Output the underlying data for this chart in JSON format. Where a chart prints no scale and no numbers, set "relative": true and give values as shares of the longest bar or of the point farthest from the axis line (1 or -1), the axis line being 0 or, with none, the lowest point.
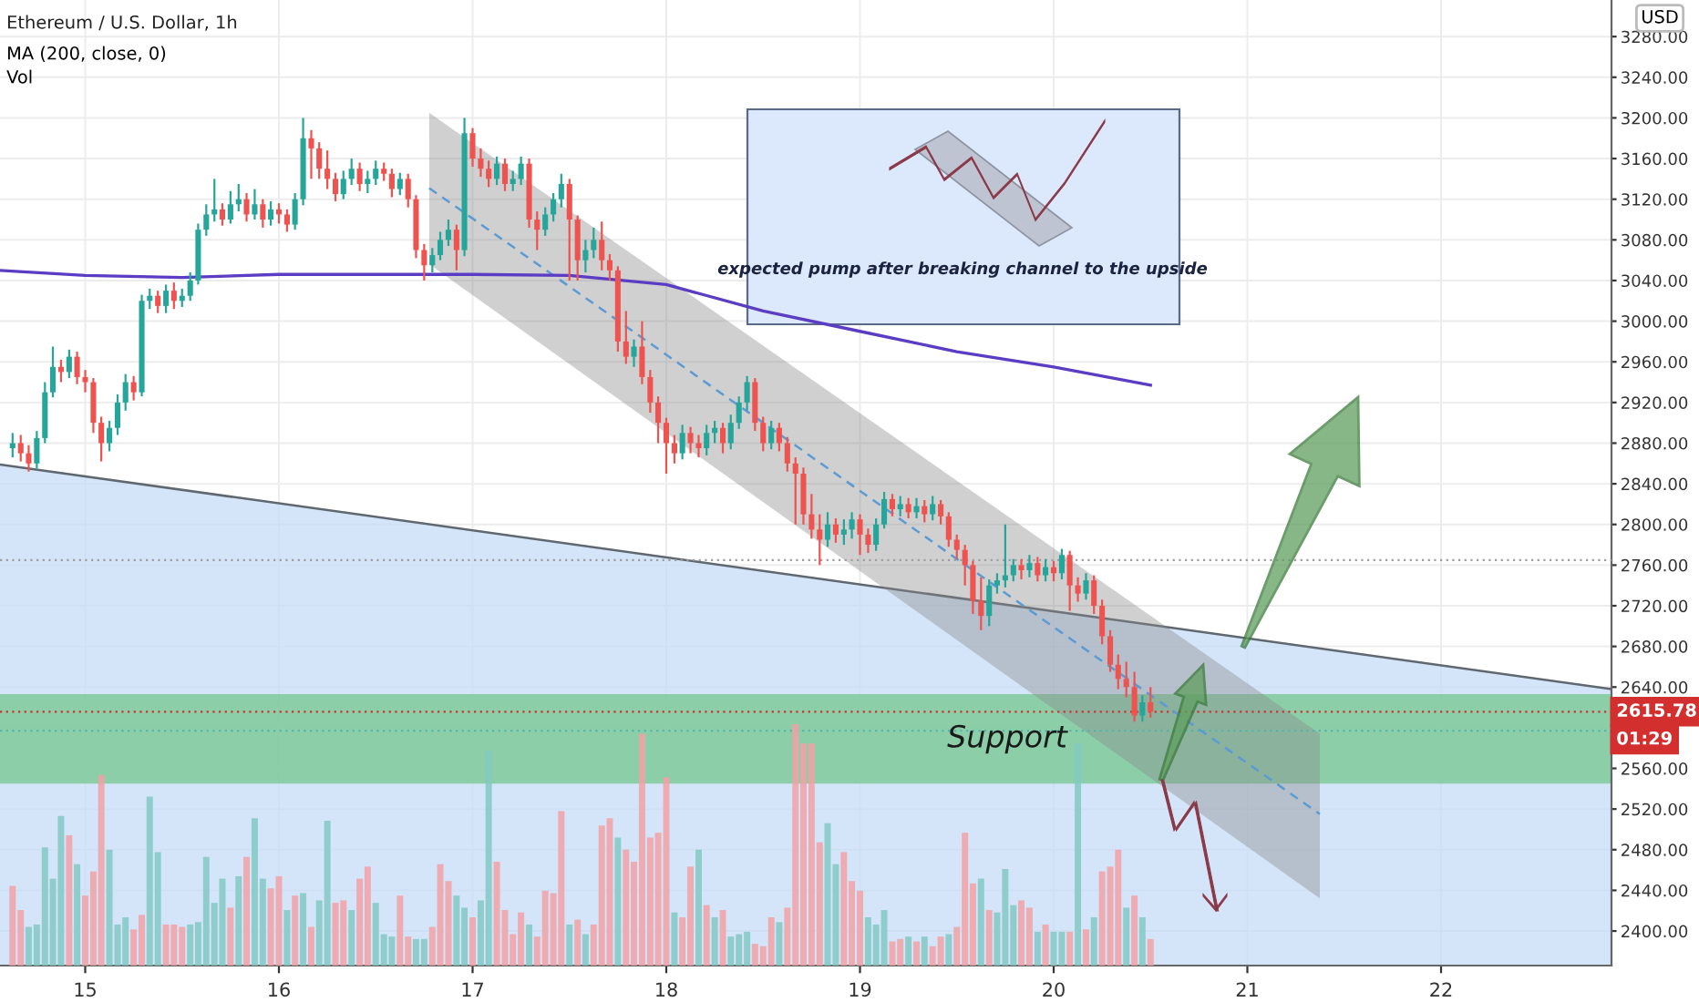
{
  "chart_data": [
    {
      "type": "candlestick",
      "title": "Ethereum / U.S. Dollar, 1h",
      "x": [
        14.625,
        14.667,
        14.708,
        14.75,
        14.792,
        14.833,
        14.875,
        14.917,
        14.958,
        15,
        15.042,
        15.083,
        15.125,
        15.167,
        15.208,
        15.25,
        15.292,
        15.333,
        15.375,
        15.417,
        15.458,
        15.5,
        15.542,
        15.583,
        15.625,
        15.667,
        15.708,
        15.75,
        15.792,
        15.833,
        15.875,
        15.917,
        15.958,
        16,
        16.042,
        16.083,
        16.125,
        16.167,
        16.208,
        16.25,
        16.292,
        16.333,
        16.375,
        16.417,
        16.458,
        16.5,
        16.542,
        16.583,
        16.625,
        16.667,
        16.708,
        16.75,
        16.792,
        16.833,
        16.875,
        16.917,
        16.958,
        17,
        17.042,
        17.083,
        17.125,
        17.167,
        17.208,
        17.25,
        17.292,
        17.333,
        17.375,
        17.417,
        17.458,
        17.5,
        17.542,
        17.583,
        17.625,
        17.667,
        17.708,
        17.75,
        17.792,
        17.833,
        17.875,
        17.917,
        17.958,
        18,
        18.042,
        18.083,
        18.125,
        18.167,
        18.208,
        18.25,
        18.292,
        18.333,
        18.375,
        18.417,
        18.458,
        18.5,
        18.542,
        18.583,
        18.625,
        18.667,
        18.708,
        18.75,
        18.792,
        18.833,
        18.875,
        18.917,
        18.958,
        19,
        19.042,
        19.083,
        19.125,
        19.167,
        19.208,
        19.25,
        19.292,
        19.333,
        19.375,
        19.417,
        19.458,
        19.5,
        19.542,
        19.583,
        19.625,
        19.667,
        19.708,
        19.75,
        19.792,
        19.833,
        19.875,
        19.917,
        19.958,
        20,
        20.042,
        20.083,
        20.125,
        20.167,
        20.208,
        20.25,
        20.292,
        20.333,
        20.375,
        20.417,
        20.458,
        20.5
      ],
      "ohlc": [
        [
          2875,
          2890,
          2866,
          2880
        ],
        [
          2880,
          2888,
          2862,
          2870
        ],
        [
          2870,
          2878,
          2852,
          2860
        ],
        [
          2860,
          2892,
          2855,
          2885
        ],
        [
          2885,
          2940,
          2880,
          2930
        ],
        [
          2930,
          2975,
          2925,
          2955
        ],
        [
          2955,
          2962,
          2940,
          2950
        ],
        [
          2950,
          2972,
          2944,
          2965
        ],
        [
          2965,
          2970,
          2938,
          2945
        ],
        [
          2945,
          2952,
          2930,
          2940
        ],
        [
          2940,
          2944,
          2890,
          2900
        ],
        [
          2900,
          2906,
          2862,
          2880
        ],
        [
          2880,
          2902,
          2872,
          2895
        ],
        [
          2895,
          2928,
          2888,
          2920
        ],
        [
          2920,
          2948,
          2912,
          2940
        ],
        [
          2940,
          2946,
          2922,
          2930
        ],
        [
          2930,
          3026,
          2926,
          3020
        ],
        [
          3020,
          3032,
          3012,
          3025
        ],
        [
          3025,
          3030,
          3008,
          3015
        ],
        [
          3015,
          3036,
          3008,
          3030
        ],
        [
          3030,
          3038,
          3012,
          3020
        ],
        [
          3020,
          3032,
          3014,
          3025
        ],
        [
          3025,
          3048,
          3020,
          3040
        ],
        [
          3040,
          3096,
          3036,
          3090
        ],
        [
          3090,
          3115,
          3084,
          3105
        ],
        [
          3105,
          3140,
          3098,
          3110
        ],
        [
          3110,
          3116,
          3094,
          3100
        ],
        [
          3100,
          3128,
          3096,
          3115
        ],
        [
          3115,
          3135,
          3108,
          3120
        ],
        [
          3120,
          3126,
          3098,
          3105
        ],
        [
          3105,
          3130,
          3100,
          3115
        ],
        [
          3115,
          3120,
          3092,
          3100
        ],
        [
          3100,
          3118,
          3094,
          3110
        ],
        [
          3110,
          3116,
          3096,
          3105
        ],
        [
          3105,
          3110,
          3088,
          3095
        ],
        [
          3095,
          3126,
          3090,
          3120
        ],
        [
          3120,
          3200,
          3114,
          3180
        ],
        [
          3180,
          3188,
          3140,
          3170
        ],
        [
          3170,
          3176,
          3140,
          3150
        ],
        [
          3150,
          3168,
          3130,
          3140
        ],
        [
          3140,
          3146,
          3118,
          3125
        ],
        [
          3125,
          3148,
          3120,
          3140
        ],
        [
          3140,
          3160,
          3134,
          3150
        ],
        [
          3150,
          3156,
          3128,
          3135
        ],
        [
          3135,
          3148,
          3126,
          3140
        ],
        [
          3140,
          3158,
          3134,
          3150
        ],
        [
          3150,
          3156,
          3138,
          3145
        ],
        [
          3145,
          3150,
          3122,
          3130
        ],
        [
          3130,
          3146,
          3124,
          3140
        ],
        [
          3140,
          3145,
          3112,
          3120
        ],
        [
          3120,
          3124,
          3062,
          3070
        ],
        [
          3070,
          3076,
          3040,
          3055
        ],
        [
          3055,
          3072,
          3048,
          3065
        ],
        [
          3065,
          3088,
          3060,
          3080
        ],
        [
          3080,
          3100,
          3074,
          3090
        ],
        [
          3090,
          3095,
          3050,
          3070
        ],
        [
          3070,
          3200,
          3064,
          3185
        ],
        [
          3185,
          3190,
          3152,
          3160
        ],
        [
          3160,
          3170,
          3142,
          3150
        ],
        [
          3150,
          3158,
          3132,
          3140
        ],
        [
          3140,
          3162,
          3134,
          3155
        ],
        [
          3155,
          3160,
          3128,
          3135
        ],
        [
          3135,
          3148,
          3128,
          3140
        ],
        [
          3140,
          3162,
          3134,
          3155
        ],
        [
          3155,
          3160,
          3092,
          3100
        ],
        [
          3100,
          3108,
          3070,
          3090
        ],
        [
          3090,
          3112,
          3084,
          3105
        ],
        [
          3105,
          3126,
          3098,
          3120
        ],
        [
          3120,
          3145,
          3112,
          3135
        ],
        [
          3135,
          3140,
          3040,
          3100
        ],
        [
          3100,
          3104,
          3040,
          3060
        ],
        [
          3060,
          3080,
          3048,
          3070
        ],
        [
          3070,
          3092,
          3062,
          3080
        ],
        [
          3080,
          3098,
          3050,
          3060
        ],
        [
          3060,
          3066,
          3040,
          3050
        ],
        [
          3050,
          3054,
          2970,
          2980
        ],
        [
          2980,
          3010,
          2958,
          2965
        ],
        [
          2965,
          2982,
          2955,
          2975
        ],
        [
          2975,
          3000,
          2938,
          2945
        ],
        [
          2945,
          2952,
          2910,
          2920
        ],
        [
          2920,
          2926,
          2880,
          2900
        ],
        [
          2900,
          2905,
          2850,
          2880
        ],
        [
          2880,
          2888,
          2860,
          2870
        ],
        [
          2870,
          2898,
          2864,
          2890
        ],
        [
          2890,
          2896,
          2870,
          2880
        ],
        [
          2880,
          2888,
          2866,
          2875
        ],
        [
          2875,
          2898,
          2868,
          2890
        ],
        [
          2890,
          2902,
          2880,
          2895
        ],
        [
          2895,
          2900,
          2870,
          2880
        ],
        [
          2880,
          2908,
          2874,
          2900
        ],
        [
          2900,
          2926,
          2894,
          2920
        ],
        [
          2920,
          2946,
          2912,
          2940
        ],
        [
          2940,
          2944,
          2892,
          2900
        ],
        [
          2900,
          2906,
          2872,
          2880
        ],
        [
          2880,
          2902,
          2874,
          2895
        ],
        [
          2895,
          2900,
          2872,
          2880
        ],
        [
          2880,
          2886,
          2852,
          2860
        ],
        [
          2860,
          2866,
          2800,
          2850
        ],
        [
          2850,
          2856,
          2800,
          2810
        ],
        [
          2810,
          2830,
          2786,
          2795
        ],
        [
          2795,
          2810,
          2760,
          2785
        ],
        [
          2785,
          2812,
          2778,
          2800
        ],
        [
          2800,
          2806,
          2782,
          2790
        ],
        [
          2790,
          2805,
          2780,
          2795
        ],
        [
          2795,
          2812,
          2786,
          2805
        ],
        [
          2805,
          2810,
          2770,
          2790
        ],
        [
          2790,
          2796,
          2772,
          2780
        ],
        [
          2780,
          2806,
          2774,
          2800
        ],
        [
          2800,
          2832,
          2796,
          2825
        ],
        [
          2825,
          2830,
          2808,
          2815
        ],
        [
          2815,
          2828,
          2808,
          2820
        ],
        [
          2820,
          2826,
          2806,
          2812
        ],
        [
          2812,
          2826,
          2806,
          2818
        ],
        [
          2818,
          2824,
          2802,
          2810
        ],
        [
          2810,
          2828,
          2804,
          2820
        ],
        [
          2820,
          2824,
          2800,
          2808
        ],
        [
          2808,
          2812,
          2778,
          2785
        ],
        [
          2785,
          2790,
          2766,
          2775
        ],
        [
          2775,
          2780,
          2740,
          2760
        ],
        [
          2760,
          2764,
          2712,
          2725
        ],
        [
          2725,
          2748,
          2696,
          2710
        ],
        [
          2710,
          2746,
          2700,
          2740
        ],
        [
          2740,
          2752,
          2732,
          2745
        ],
        [
          2745,
          2800,
          2738,
          2750
        ],
        [
          2750,
          2766,
          2744,
          2760
        ],
        [
          2760,
          2766,
          2746,
          2755
        ],
        [
          2755,
          2770,
          2748,
          2762
        ],
        [
          2762,
          2768,
          2744,
          2750
        ],
        [
          2750,
          2766,
          2744,
          2758
        ],
        [
          2758,
          2764,
          2744,
          2752
        ],
        [
          2752,
          2776,
          2746,
          2770
        ],
        [
          2770,
          2774,
          2715,
          2740
        ],
        [
          2740,
          2748,
          2724,
          2732
        ],
        [
          2732,
          2752,
          2726,
          2745
        ],
        [
          2745,
          2750,
          2712,
          2720
        ],
        [
          2720,
          2726,
          2682,
          2690
        ],
        [
          2690,
          2696,
          2655,
          2662
        ],
        [
          2662,
          2672,
          2638,
          2648
        ],
        [
          2648,
          2665,
          2630,
          2640
        ],
        [
          2640,
          2655,
          2606,
          2612
        ],
        [
          2612,
          2632,
          2606,
          2625
        ],
        [
          2625,
          2640,
          2610,
          2615.78
        ]
      ],
      "colors": [
        "#26a69a",
        "#ef5350",
        "#ef5350",
        "#26a69a",
        "#26a69a",
        "#26a69a",
        "#ef5350",
        "#26a69a",
        "#ef5350",
        "#ef5350",
        "#ef5350",
        "#ef5350",
        "#26a69a",
        "#26a69a",
        "#26a69a",
        "#ef5350",
        "#26a69a",
        "#26a69a",
        "#ef5350",
        "#26a69a",
        "#ef5350",
        "#26a69a",
        "#26a69a",
        "#26a69a",
        "#26a69a",
        "#26a69a",
        "#ef5350",
        "#26a69a",
        "#26a69a",
        "#ef5350",
        "#26a69a",
        "#ef5350",
        "#26a69a",
        "#ef5350",
        "#ef5350",
        "#26a69a",
        "#26a69a",
        "#ef5350",
        "#ef5350",
        "#ef5350",
        "#ef5350",
        "#26a69a",
        "#26a69a",
        "#ef5350",
        "#26a69a",
        "#26a69a",
        "#ef5350",
        "#ef5350",
        "#26a69a",
        "#ef5350",
        "#ef5350",
        "#ef5350",
        "#26a69a",
        "#26a69a",
        "#26a69a",
        "#ef5350",
        "#26a69a",
        "#ef5350",
        "#ef5350",
        "#ef5350",
        "#26a69a",
        "#ef5350",
        "#26a69a",
        "#26a69a",
        "#ef5350",
        "#ef5350",
        "#26a69a",
        "#26a69a",
        "#26a69a",
        "#ef5350",
        "#ef5350",
        "#26a69a",
        "#26a69a",
        "#ef5350",
        "#ef5350",
        "#ef5350",
        "#ef5350",
        "#26a69a",
        "#ef5350",
        "#ef5350",
        "#ef5350",
        "#ef5350",
        "#ef5350",
        "#26a69a",
        "#ef5350",
        "#ef5350",
        "#26a69a",
        "#26a69a",
        "#ef5350",
        "#26a69a",
        "#26a69a",
        "#26a69a",
        "#ef5350",
        "#ef5350",
        "#26a69a",
        "#ef5350",
        "#ef5350",
        "#ef5350",
        "#ef5350",
        "#ef5350",
        "#ef5350",
        "#26a69a",
        "#ef5350",
        "#26a69a",
        "#26a69a",
        "#ef5350",
        "#ef5350",
        "#26a69a",
        "#26a69a",
        "#ef5350",
        "#26a69a",
        "#ef5350",
        "#26a69a",
        "#ef5350",
        "#26a69a",
        "#ef5350",
        "#ef5350",
        "#ef5350",
        "#ef5350",
        "#ef5350",
        "#ef5350",
        "#26a69a",
        "#26a69a",
        "#26a69a",
        "#26a69a",
        "#ef5350",
        "#26a69a",
        "#ef5350",
        "#26a69a",
        "#ef5350",
        "#26a69a",
        "#ef5350",
        "#ef5350",
        "#26a69a",
        "#ef5350",
        "#ef5350",
        "#ef5350",
        "#ef5350",
        "#ef5350",
        "#ef5350",
        "#26a69a",
        "#ef5350"
      ],
      "xlim": [
        14.56,
        22.88
      ],
      "xticks": [
        15,
        16,
        17,
        18,
        19,
        20,
        21,
        22
      ],
      "ylim": [
        2366,
        3316
      ],
      "yticks": [
        {
          "value": 2400,
          "label": "2400.00"
        },
        {
          "value": 2440,
          "label": "2440.00"
        },
        {
          "value": 2480,
          "label": "2480.00"
        },
        {
          "value": 2520,
          "label": "2520.00"
        },
        {
          "value": 2560,
          "label": "2560.00"
        },
        {
          "value": 2600,
          "label": null
        },
        {
          "value": 2640,
          "label": "2640.00"
        },
        {
          "value": 2680,
          "label": "2680.00"
        },
        {
          "value": 2720,
          "label": "2720.00"
        },
        {
          "value": 2760,
          "label": "2760.00"
        },
        {
          "value": 2800,
          "label": "2800.00"
        },
        {
          "value": 2840,
          "label": "2840.00"
        },
        {
          "value": 2880,
          "label": "2880.00"
        },
        {
          "value": 2920,
          "label": "2920.00"
        },
        {
          "value": 2960,
          "label": "2960.00"
        },
        {
          "value": 3000,
          "label": "3000.00"
        },
        {
          "value": 3040,
          "label": "3040.00"
        },
        {
          "value": 3080,
          "label": "3080.00"
        },
        {
          "value": 3120,
          "label": "3120.00"
        },
        {
          "value": 3160,
          "label": "3160.00"
        },
        {
          "value": 3200,
          "label": "3200.00"
        },
        {
          "value": 3240,
          "label": "3240.00"
        },
        {
          "value": 3280,
          "label": "3280.00"
        }
      ],
      "grid": true,
      "series": [
        {
          "type": "area",
          "x": [
            14.56,
            22.88
          ],
          "values": [
            2859,
            2638
          ],
          "color": "#c5dcf7"
        },
        {
          "type": "line",
          "x": [
            16.776,
            21.374
          ],
          "values": [
            3131,
            2515
          ],
          "lower": [
            3056,
            2432
          ],
          "upper": [
            3205,
            2594
          ],
          "color": "#5b9bd5",
          "line_style": "dashed"
        },
        {
          "type": "line",
          "x": [
            14.56,
            15.0,
            15.5,
            16.0,
            16.5,
            17.0,
            17.5,
            18.0,
            18.5,
            19.0,
            19.5,
            20.0,
            20.5
          ],
          "values": [
            3050,
            3045,
            3043,
            3046,
            3046,
            3046,
            3045,
            3036,
            3010,
            2990,
            2970,
            2955,
            2937
          ],
          "color": "#5b3cc4",
          "line_style": "solid"
        }
      ],
      "bands": [
        {
          "axis": "y",
          "from": 2545,
          "to": 2633,
          "label": "Support",
          "color": "#6cc486"
        }
      ],
      "ref_lines": [
        {
          "axis": "y",
          "value": 2765,
          "color": "#9e9e9e",
          "line_style": "dotted"
        },
        {
          "axis": "y",
          "value": 2615.78,
          "label": "2615.78",
          "color": "#d32f2f",
          "line_style": "dotted"
        },
        {
          "axis": "y",
          "value": 2597,
          "color": "#4db6ac",
          "line_style": "dotted"
        }
      ],
      "annotations": [
        "MA (200, close, 0)",
        "Vol",
        "USD",
        "01:29",
        "expected pump after breaking channel to the upside"
      ]
    },
    {
      "type": "bar",
      "relative": true,
      "tick_labels": false,
      "xlim": [
        14.56,
        22.88
      ],
      "x": [
        14.625,
        14.667,
        14.708,
        14.75,
        14.792,
        14.833,
        14.875,
        14.917,
        14.958,
        15,
        15.042,
        15.083,
        15.125,
        15.167,
        15.208,
        15.25,
        15.292,
        15.333,
        15.375,
        15.417,
        15.458,
        15.5,
        15.542,
        15.583,
        15.625,
        15.667,
        15.708,
        15.75,
        15.792,
        15.833,
        15.875,
        15.917,
        15.958,
        16,
        16.042,
        16.083,
        16.125,
        16.167,
        16.208,
        16.25,
        16.292,
        16.333,
        16.375,
        16.417,
        16.458,
        16.5,
        16.542,
        16.583,
        16.625,
        16.667,
        16.708,
        16.75,
        16.792,
        16.833,
        16.875,
        16.917,
        16.958,
        17,
        17.042,
        17.083,
        17.125,
        17.167,
        17.208,
        17.25,
        17.292,
        17.333,
        17.375,
        17.417,
        17.458,
        17.5,
        17.542,
        17.583,
        17.625,
        17.667,
        17.708,
        17.75,
        17.792,
        17.833,
        17.875,
        17.917,
        17.958,
        18,
        18.042,
        18.083,
        18.125,
        18.167,
        18.208,
        18.25,
        18.292,
        18.333,
        18.375,
        18.417,
        18.458,
        18.5,
        18.542,
        18.583,
        18.625,
        18.667,
        18.708,
        18.75,
        18.792,
        18.833,
        18.875,
        18.917,
        18.958,
        19,
        19.042,
        19.083,
        19.125,
        19.167,
        19.208,
        19.25,
        19.292,
        19.333,
        19.375,
        19.417,
        19.458,
        19.5,
        19.542,
        19.583,
        19.625,
        19.667,
        19.708,
        19.75,
        19.792,
        19.833,
        19.875,
        19.917,
        19.958,
        20,
        20.042,
        20.083,
        20.125,
        20.167,
        20.208,
        20.25,
        20.292,
        20.333,
        20.375,
        20.417,
        20.458,
        20.5
      ],
      "values": [
        0.33,
        0.23,
        0.16,
        0.17,
        0.49,
        0.36,
        0.62,
        0.54,
        0.42,
        0.29,
        0.39,
        0.79,
        0.48,
        0.17,
        0.2,
        0.15,
        0.21,
        0.7,
        0.47,
        0.17,
        0.17,
        0.16,
        0.17,
        0.18,
        0.45,
        0.26,
        0.36,
        0.24,
        0.37,
        0.45,
        0.61,
        0.36,
        0.32,
        0.37,
        0.23,
        0.29,
        0.3,
        0.16,
        0.27,
        0.6,
        0.26,
        0.27,
        0.23,
        0.36,
        0.41,
        0.26,
        0.13,
        0.12,
        0.29,
        0.12,
        0.11,
        0.11,
        0.16,
        0.42,
        0.35,
        0.29,
        0.24,
        0.2,
        0.27,
        0.89,
        0.43,
        0.23,
        0.13,
        0.22,
        0.17,
        0.12,
        0.31,
        0.3,
        0.64,
        0.17,
        0.19,
        0.13,
        0.17,
        0.58,
        0.61,
        0.53,
        0.48,
        0.43,
        0.96,
        0.53,
        0.55,
        0.78,
        0.22,
        0.2,
        0.41,
        0.48,
        0.25,
        0.2,
        0.23,
        0.12,
        0.13,
        0.14,
        0.09,
        0.08,
        0.2,
        0.18,
        0.24,
        1.0,
        0.92,
        0.92,
        0.51,
        0.59,
        0.42,
        0.47,
        0.35,
        0.31,
        0.2,
        0.17,
        0.23,
        0.1,
        0.11,
        0.12,
        0.1,
        0.12,
        0.08,
        0.12,
        0.13,
        0.16,
        0.55,
        0.34,
        0.36,
        0.23,
        0.22,
        0.4,
        0.25,
        0.27,
        0.24,
        0.14,
        0.17,
        0.14,
        0.14,
        0.14,
        0.92,
        0.15,
        0.2,
        0.39,
        0.41,
        0.48,
        0.24,
        0.29,
        0.2,
        0.11
      ],
      "colors": [
        "#f2a1a6",
        "#f2a1a6",
        "#82c9c4",
        "#82c9c4",
        "#82c9c4",
        "#82c9c4",
        "#82c9c4",
        "#f2a1a6",
        "#82c9c4",
        "#f2a1a6",
        "#f2a1a6",
        "#f2a1a6",
        "#82c9c4",
        "#82c9c4",
        "#82c9c4",
        "#f2a1a6",
        "#f2a1a6",
        "#82c9c4",
        "#82c9c4",
        "#f2a1a6",
        "#f2a1a6",
        "#f2a1a6",
        "#82c9c4",
        "#82c9c4",
        "#82c9c4",
        "#82c9c4",
        "#82c9c4",
        "#f2a1a6",
        "#82c9c4",
        "#f2a1a6",
        "#82c9c4",
        "#82c9c4",
        "#f2a1a6",
        "#f2a1a6",
        "#82c9c4",
        "#f2a1a6",
        "#82c9c4",
        "#f2a1a6",
        "#82c9c4",
        "#82c9c4",
        "#f2a1a6",
        "#f2a1a6",
        "#82c9c4",
        "#f2a1a6",
        "#f2a1a6",
        "#82c9c4",
        "#82c9c4",
        "#82c9c4",
        "#f2a1a6",
        "#f2a1a6",
        "#82c9c4",
        "#82c9c4",
        "#f2a1a6",
        "#f2a1a6",
        "#f2a1a6",
        "#82c9c4",
        "#82c9c4",
        "#f2a1a6",
        "#82c9c4",
        "#82c9c4",
        "#f2a1a6",
        "#f2a1a6",
        "#f2a1a6",
        "#f2a1a6",
        "#82c9c4",
        "#f2a1a6",
        "#f2a1a6",
        "#f2a1a6",
        "#f2a1a6",
        "#82c9c4",
        "#f2a1a6",
        "#82c9c4",
        "#f2a1a6",
        "#f2a1a6",
        "#f2a1a6",
        "#82c9c4",
        "#f2a1a6",
        "#f2a1a6",
        "#f2a1a6",
        "#f2a1a6",
        "#f2a1a6",
        "#f2a1a6",
        "#82c9c4",
        "#f2a1a6",
        "#f2a1a6",
        "#82c9c4",
        "#f2a1a6",
        "#82c9c4",
        "#f2a1a6",
        "#82c9c4",
        "#82c9c4",
        "#82c9c4",
        "#f2a1a6",
        "#f2a1a6",
        "#f2a1a6",
        "#82c9c4",
        "#f2a1a6",
        "#f2a1a6",
        "#f2a1a6",
        "#f2a1a6",
        "#f2a1a6",
        "#82c9c4",
        "#82c9c4",
        "#f2a1a6",
        "#f2a1a6",
        "#f2a1a6",
        "#82c9c4",
        "#82c9c4",
        "#82c9c4",
        "#f2a1a6",
        "#f2a1a6",
        "#82c9c4",
        "#f2a1a6",
        "#82c9c4",
        "#f2a1a6",
        "#f2a1a6",
        "#82c9c4",
        "#f2a1a6",
        "#f2a1a6",
        "#f2a1a6",
        "#82c9c4",
        "#f2a1a6",
        "#82c9c4",
        "#82c9c4",
        "#82c9c4",
        "#f2a1a6",
        "#f2a1a6",
        "#82c9c4",
        "#f2a1a6",
        "#82c9c4",
        "#82c9c4",
        "#f2a1a6",
        "#82c9c4",
        "#f2a1a6",
        "#82c9c4",
        "#f2a1a6",
        "#f2a1a6",
        "#f2a1a6",
        "#82c9c4",
        "#f2a1a6",
        "#82c9c4",
        "#f2a1a6"
      ]
    }
  ]
}
